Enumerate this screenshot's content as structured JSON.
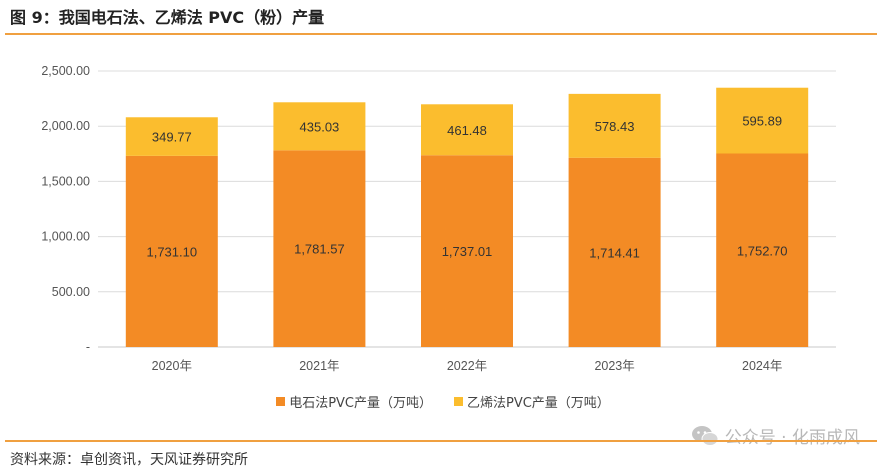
{
  "title": "图 9：我国电石法、乙烯法 PVC（粉）产量",
  "source": "资料来源：卓创资讯，天风证券研究所",
  "watermark": "公众号 · 化雨成风",
  "colors": {
    "accent_rule": "#f0a040"
  },
  "chart_data": {
    "type": "bar",
    "stacked": true,
    "categories": [
      "2020年",
      "2021年",
      "2022年",
      "2023年",
      "2024年"
    ],
    "series": [
      {
        "name": "电石法PVC产量（万吨）",
        "color": "#f38b25",
        "values": [
          1731.1,
          1781.57,
          1737.01,
          1714.41,
          1752.7
        ],
        "labels": [
          "1,731.10",
          "1,781.57",
          "1,737.01",
          "1,714.41",
          "1,752.70"
        ]
      },
      {
        "name": "乙烯法PVC产量（万吨）",
        "color": "#fbbd2e",
        "values": [
          349.77,
          435.03,
          461.48,
          578.43,
          595.89
        ],
        "labels": [
          "349.77",
          "435.03",
          "461.48",
          "578.43",
          "595.89"
        ]
      }
    ],
    "ylim": [
      0,
      2500
    ],
    "yticks": [
      0,
      500,
      1000,
      1500,
      2000,
      2500
    ],
    "ytick_labels": [
      "-",
      "500.00",
      "1,000.00",
      "1,500.00",
      "2,000.00",
      "2,500.00"
    ],
    "grid": true,
    "legend_position": "bottom"
  }
}
